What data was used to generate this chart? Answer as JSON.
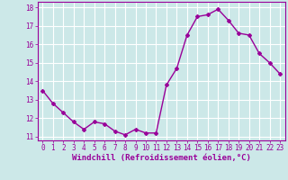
{
  "x": [
    0,
    1,
    2,
    3,
    4,
    5,
    6,
    7,
    8,
    9,
    10,
    11,
    12,
    13,
    14,
    15,
    16,
    17,
    18,
    19,
    20,
    21,
    22,
    23
  ],
  "y": [
    13.5,
    12.8,
    12.3,
    11.8,
    11.4,
    11.8,
    11.7,
    11.3,
    11.1,
    11.4,
    11.2,
    11.2,
    13.8,
    14.7,
    16.5,
    17.5,
    17.6,
    17.9,
    17.3,
    16.6,
    16.5,
    15.5,
    15.0,
    14.4
  ],
  "line_color": "#990099",
  "marker": "D",
  "marker_size": 2,
  "linewidth": 1.0,
  "bg_color": "#cce8e8",
  "grid_color": "#ffffff",
  "xlabel": "Windchill (Refroidissement éolien,°C)",
  "tick_color": "#990099",
  "ylim": [
    10.8,
    18.3
  ],
  "xlim": [
    -0.5,
    23.5
  ],
  "yticks": [
    11,
    12,
    13,
    14,
    15,
    16,
    17,
    18
  ],
  "xticks": [
    0,
    1,
    2,
    3,
    4,
    5,
    6,
    7,
    8,
    9,
    10,
    11,
    12,
    13,
    14,
    15,
    16,
    17,
    18,
    19,
    20,
    21,
    22,
    23
  ],
  "xtick_labels": [
    "0",
    "1",
    "2",
    "3",
    "4",
    "5",
    "6",
    "7",
    "8",
    "9",
    "10",
    "11",
    "12",
    "13",
    "14",
    "15",
    "16",
    "17",
    "18",
    "19",
    "20",
    "21",
    "22",
    "23"
  ],
  "ytick_labels": [
    "11",
    "12",
    "13",
    "14",
    "15",
    "16",
    "17",
    "18"
  ],
  "tick_fontsize": 5.5,
  "xlabel_fontsize": 6.5
}
